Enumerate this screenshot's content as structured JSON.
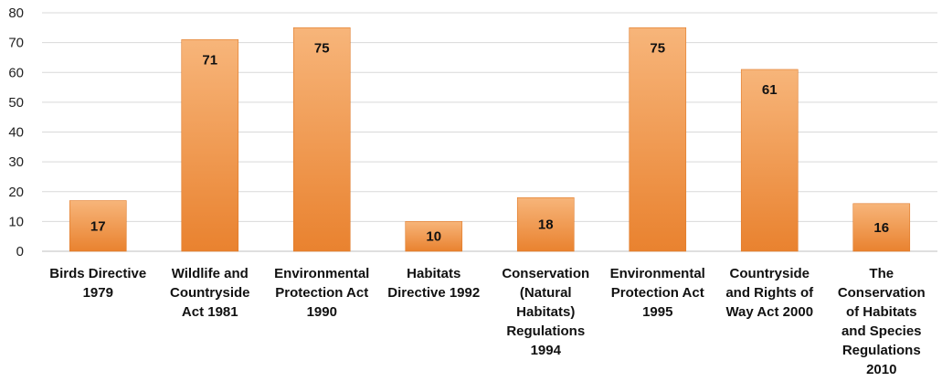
{
  "chart_data": {
    "type": "bar",
    "title": "",
    "xlabel": "",
    "ylabel": "",
    "ylim": [
      0,
      80
    ],
    "ytick_step": 10,
    "yticks": [
      "0",
      "10",
      "20",
      "30",
      "40",
      "50",
      "60",
      "70",
      "80"
    ],
    "grid": true,
    "legend": "none",
    "categories": [
      [
        "Birds Directive",
        "1979"
      ],
      [
        "Wildlife and",
        "Countryside",
        "Act  1981"
      ],
      [
        "Environmental",
        "Protection Act",
        "1990"
      ],
      [
        "Habitats",
        "Directive 1992"
      ],
      [
        "Conservation",
        "(Natural",
        "Habitats)",
        "Regulations",
        "1994"
      ],
      [
        "Environmental",
        "Protection Act",
        "1995"
      ],
      [
        "Countryside",
        "and Rights of",
        "Way Act 2000"
      ],
      [
        "The",
        "Conservation",
        "of Habitats",
        "and Species",
        "Regulations",
        "2010"
      ]
    ],
    "values": [
      17,
      71,
      75,
      10,
      18,
      75,
      61,
      16
    ],
    "data_labels": [
      "17",
      "71",
      "75",
      "10",
      "18",
      "75",
      "61",
      "16"
    ],
    "colors": {
      "bar_top": "#f7b57a",
      "bar_bottom": "#e9822f",
      "bar_edge": "#e07a28",
      "grid": "#d9d9d9",
      "axis": "#bfbfbf"
    }
  }
}
